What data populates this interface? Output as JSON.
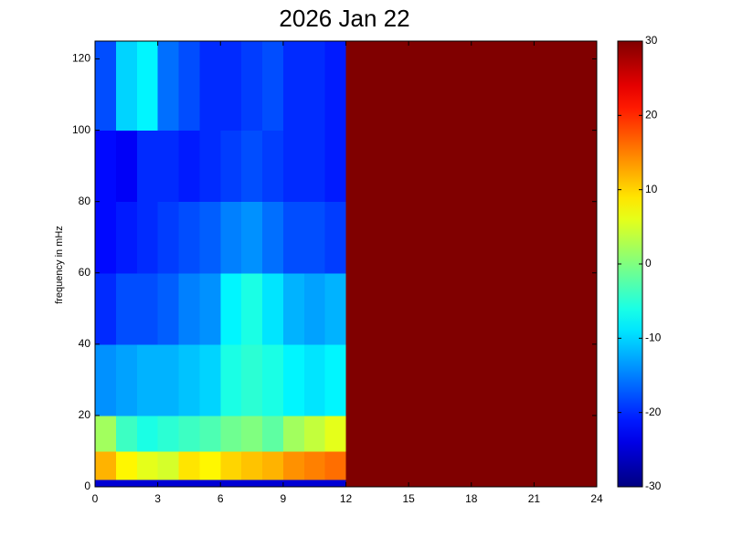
{
  "chart_data": {
    "type": "heatmap",
    "title": "2026 Jan 22",
    "ylabel": "frequency in mHz",
    "x_edges": [
      0,
      1,
      2,
      3,
      4,
      5,
      6,
      7,
      8,
      9,
      10,
      11,
      12,
      13,
      14,
      15,
      16,
      17,
      18,
      19,
      20,
      21,
      22,
      23,
      24
    ],
    "y_edges": [
      0,
      2,
      10,
      20,
      40,
      60,
      80,
      100,
      125
    ],
    "z": [
      [
        -25,
        -25,
        -25,
        -25,
        -25,
        -25,
        -25,
        -25,
        -25,
        -25,
        -25,
        -25,
        30,
        30,
        30,
        30,
        30,
        30,
        30,
        30,
        30,
        30,
        30,
        30
      ],
      [
        12,
        8,
        6,
        5,
        9,
        8,
        10,
        11,
        12,
        14,
        15,
        16,
        30,
        30,
        30,
        30,
        30,
        30,
        30,
        30,
        30,
        30,
        30,
        30
      ],
      [
        2,
        -4,
        -6,
        -5,
        -4,
        -3,
        -1,
        0,
        -2,
        2,
        4,
        6,
        30,
        30,
        30,
        30,
        30,
        30,
        30,
        30,
        30,
        30,
        30,
        30
      ],
      [
        -14,
        -13,
        -12,
        -12,
        -11,
        -10,
        -6,
        -5,
        -6,
        -8,
        -9,
        -8,
        30,
        30,
        30,
        30,
        30,
        30,
        30,
        30,
        30,
        30,
        30,
        30
      ],
      [
        -20,
        -18,
        -18,
        -17,
        -15,
        -14,
        -8,
        -6,
        -9,
        -12,
        -13,
        -12,
        30,
        30,
        30,
        30,
        30,
        30,
        30,
        30,
        30,
        30,
        30,
        30
      ],
      [
        -22,
        -21,
        -20,
        -19,
        -18,
        -17,
        -15,
        -14,
        -16,
        -18,
        -18,
        -19,
        30,
        30,
        30,
        30,
        30,
        30,
        30,
        30,
        30,
        30,
        30,
        30
      ],
      [
        -22,
        -23,
        -20,
        -20,
        -21,
        -20,
        -19,
        -18,
        -19,
        -20,
        -20,
        -21,
        30,
        30,
        30,
        30,
        30,
        30,
        30,
        30,
        30,
        30,
        30,
        30
      ],
      [
        -18,
        -10,
        -8,
        -16,
        -18,
        -20,
        -20,
        -19,
        -18,
        -20,
        -20,
        -21,
        30,
        30,
        30,
        30,
        30,
        30,
        30,
        30,
        30,
        30,
        30,
        30
      ]
    ],
    "xlim": [
      0,
      24
    ],
    "xticks": [
      0,
      3,
      6,
      9,
      12,
      15,
      18,
      21,
      24
    ],
    "ylim": [
      0,
      125
    ],
    "yticks": [
      0,
      20,
      40,
      60,
      80,
      100,
      120
    ],
    "colormap": "jet",
    "clim": [
      -30,
      30
    ],
    "cticks": [
      -30,
      -20,
      -10,
      0,
      10,
      20,
      30
    ]
  }
}
